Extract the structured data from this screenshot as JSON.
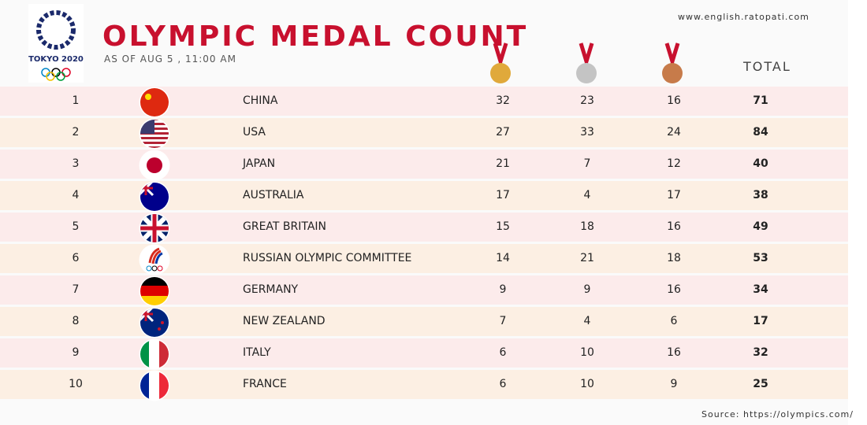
{
  "header": {
    "title": "OLYMPIC MEDAL COUNT",
    "subtitle": "AS OF AUG 5 , 11:00 AM",
    "logo_text": "TOKYO 2020",
    "website": "www.english.ratopati.com"
  },
  "table": {
    "total_header": "TOTAL",
    "rows": [
      [
        "1",
        "CHINA",
        "32",
        "23",
        "16",
        "71"
      ],
      [
        "2",
        "USA",
        "27",
        "33",
        "24",
        "84"
      ],
      [
        "3",
        "JAPAN",
        "21",
        "7",
        "12",
        "40"
      ],
      [
        "4",
        "AUSTRALIA",
        "17",
        "4",
        "17",
        "38"
      ],
      [
        "5",
        "GREAT BRITAIN",
        "15",
        "18",
        "16",
        "49"
      ],
      [
        "6",
        "RUSSIAN OLYMPIC COMMITTEE",
        "14",
        "21",
        "18",
        "53"
      ],
      [
        "7",
        "GERMANY",
        "9",
        "9",
        "16",
        "34"
      ],
      [
        "8",
        "NEW ZEALAND",
        "7",
        "4",
        "6",
        "17"
      ],
      [
        "9",
        "ITALY",
        "6",
        "10",
        "16",
        "32"
      ],
      [
        "10",
        "FRANCE",
        "6",
        "10",
        "9",
        "25"
      ]
    ]
  },
  "footer": {
    "source": "Source: https://olympics.com/"
  }
}
